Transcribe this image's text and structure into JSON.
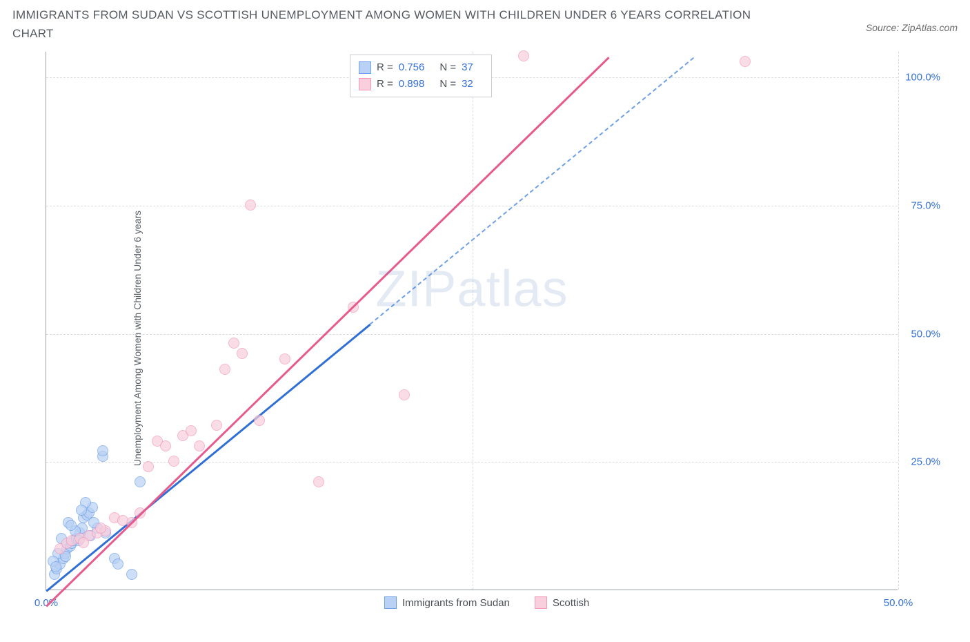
{
  "title": "IMMIGRANTS FROM SUDAN VS SCOTTISH UNEMPLOYMENT AMONG WOMEN WITH CHILDREN UNDER 6 YEARS CORRELATION CHART",
  "source_label": "Source: ZipAtlas.com",
  "y_axis_label": "Unemployment Among Women with Children Under 6 years",
  "watermark": {
    "bold": "ZIP",
    "thin": "atlas"
  },
  "chart": {
    "type": "scatter",
    "xlim": [
      0,
      50
    ],
    "ylim": [
      0,
      105
    ],
    "x_ticks": [
      0,
      25,
      50
    ],
    "x_tick_labels": [
      "0.0%",
      "",
      "50.0%"
    ],
    "y_ticks": [
      25,
      50,
      75,
      100
    ],
    "y_tick_labels": [
      "25.0%",
      "50.0%",
      "75.0%",
      "100.0%"
    ],
    "grid_color": "#d9dce0",
    "background_color": "#ffffff",
    "axis_color": "#9aa0a6",
    "series": [
      {
        "name": "Immigrants from Sudan",
        "color_fill": "#b9d1f4",
        "color_stroke": "#6ea0e8",
        "trend_color": "#2f6fd6",
        "r_value": "0.756",
        "n_value": "37",
        "trend": {
          "x1": 0,
          "y1": 0,
          "x2": 19,
          "y2": 52,
          "dash_to_x": 38,
          "dash_to_y": 104
        },
        "points": [
          [
            0.5,
            3
          ],
          [
            0.6,
            4
          ],
          [
            0.8,
            5
          ],
          [
            1,
            6
          ],
          [
            1.1,
            7
          ],
          [
            1.2,
            8
          ],
          [
            1.4,
            8.5
          ],
          [
            1.5,
            9
          ],
          [
            1.6,
            9.5
          ],
          [
            1.8,
            10
          ],
          [
            2,
            11
          ],
          [
            2.1,
            12
          ],
          [
            2.2,
            14
          ],
          [
            2.4,
            14.5
          ],
          [
            2.5,
            15
          ],
          [
            2.7,
            16
          ],
          [
            3,
            12
          ],
          [
            3.3,
            26
          ],
          [
            3.3,
            27
          ],
          [
            3.5,
            11
          ],
          [
            4,
            6
          ],
          [
            4.2,
            5
          ],
          [
            5,
            3
          ],
          [
            5.5,
            21
          ],
          [
            1.3,
            13
          ],
          [
            0.9,
            10
          ],
          [
            0.7,
            7
          ],
          [
            0.4,
            5.5
          ],
          [
            1.7,
            11.5
          ],
          [
            2.3,
            17
          ],
          [
            2.8,
            13
          ],
          [
            1.9,
            9.5
          ],
          [
            1.15,
            6.5
          ],
          [
            0.55,
            4.5
          ],
          [
            2.6,
            10.5
          ],
          [
            1.45,
            12.5
          ],
          [
            2.05,
            15.5
          ]
        ]
      },
      {
        "name": "Scottish",
        "color_fill": "#f9cedd",
        "color_stroke": "#f19abc",
        "trend_color": "#e85a8c",
        "r_value": "0.898",
        "n_value": "32",
        "trend": {
          "x1": 0,
          "y1": -3,
          "x2": 33,
          "y2": 104
        },
        "points": [
          [
            0.8,
            8
          ],
          [
            1.2,
            9
          ],
          [
            1.5,
            9.5
          ],
          [
            2,
            10
          ],
          [
            2.5,
            10.5
          ],
          [
            3,
            11
          ],
          [
            3.5,
            11.5
          ],
          [
            4,
            14
          ],
          [
            5,
            13
          ],
          [
            5.5,
            15
          ],
          [
            6,
            24
          ],
          [
            6.5,
            29
          ],
          [
            7,
            28
          ],
          [
            7.5,
            25
          ],
          [
            8,
            30
          ],
          [
            8.5,
            31
          ],
          [
            9,
            28
          ],
          [
            10,
            32
          ],
          [
            10.5,
            43
          ],
          [
            11,
            48
          ],
          [
            11.5,
            46
          ],
          [
            12,
            75
          ],
          [
            12.5,
            33
          ],
          [
            14,
            45
          ],
          [
            16,
            21
          ],
          [
            18,
            55
          ],
          [
            21,
            38
          ],
          [
            28,
            104
          ],
          [
            41,
            103
          ],
          [
            4.5,
            13.5
          ],
          [
            3.2,
            12
          ],
          [
            2.2,
            9.2
          ]
        ]
      }
    ]
  },
  "legend_bottom": [
    {
      "label": "Immigrants from Sudan",
      "fill": "#b9d1f4",
      "stroke": "#6ea0e8"
    },
    {
      "label": "Scottish",
      "fill": "#f9cedd",
      "stroke": "#f19abc"
    }
  ]
}
